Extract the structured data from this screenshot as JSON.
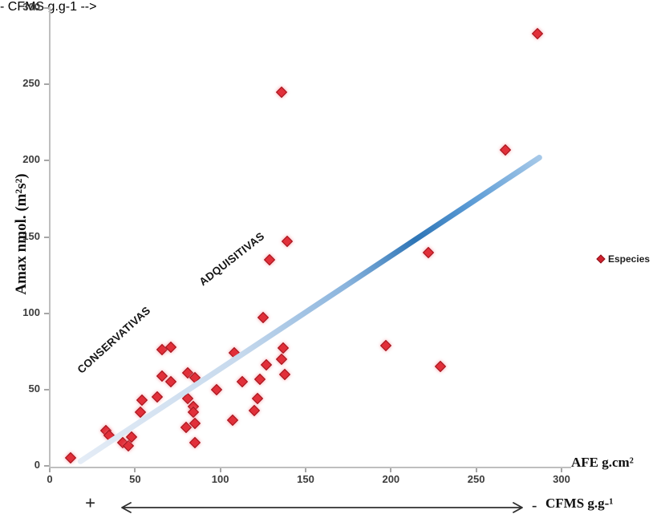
{
  "chart_data": {
    "type": "scatter",
    "title": "",
    "ylabel": "Amax nmol. (m²s²)",
    "xlabel": "AFE g.cm²",
    "xlim": [
      0,
      300
    ],
    "ylim": [
      0,
      300
    ],
    "x_ticks": [
      0,
      50,
      100,
      150,
      200,
      250,
      300
    ],
    "y_ticks": [
      0,
      50,
      100,
      150,
      200,
      250,
      300
    ],
    "grid": "off",
    "legend_position": "right",
    "legend": {
      "label": "Especies",
      "marker": "diamond",
      "marker_color": "#e12f39"
    },
    "series": [
      {
        "name": "Especies",
        "points": [
          [
            12,
            5
          ],
          [
            33,
            23
          ],
          [
            35,
            20
          ],
          [
            43,
            15
          ],
          [
            46,
            13
          ],
          [
            48,
            19
          ],
          [
            53,
            35
          ],
          [
            54,
            43
          ],
          [
            63,
            45
          ],
          [
            66,
            59
          ],
          [
            66,
            76
          ],
          [
            71,
            78
          ],
          [
            71,
            55
          ],
          [
            80,
            25
          ],
          [
            81,
            44
          ],
          [
            81,
            61
          ],
          [
            84,
            39
          ],
          [
            84,
            35
          ],
          [
            85,
            58
          ],
          [
            85,
            28
          ],
          [
            85,
            15
          ],
          [
            98,
            50
          ],
          [
            107,
            30
          ],
          [
            108,
            74
          ],
          [
            113,
            55
          ],
          [
            120,
            36
          ],
          [
            122,
            44
          ],
          [
            123,
            57
          ],
          [
            125,
            97
          ],
          [
            127,
            66
          ],
          [
            129,
            135
          ],
          [
            136,
            70
          ],
          [
            137,
            77
          ],
          [
            138,
            60
          ],
          [
            136,
            245
          ],
          [
            139,
            147
          ],
          [
            197,
            79
          ],
          [
            222,
            140
          ],
          [
            229,
            65
          ],
          [
            267,
            207
          ],
          [
            286,
            283
          ]
        ]
      }
    ],
    "trendline": {
      "x1": 18,
      "y1": 3,
      "x2": 287,
      "y2": 202,
      "style": "blue-gradient"
    },
    "annotations": [
      {
        "text": "CONSERVATIVAS"
      },
      {
        "text": "ADQUISITIVAS"
      }
    ],
    "secondary_axis": {
      "plus_label": "+",
      "minus_label": "-",
      "label": "CFMS g.g-¹",
      "arrow": "double-headed"
    },
    "colors": {
      "point_fill": "#e12f39",
      "point_edge": "#a0151d",
      "axis": "#bfbfbf",
      "trend_light": "#dde8f5",
      "trend_dark": "#2e75b6"
    }
  }
}
